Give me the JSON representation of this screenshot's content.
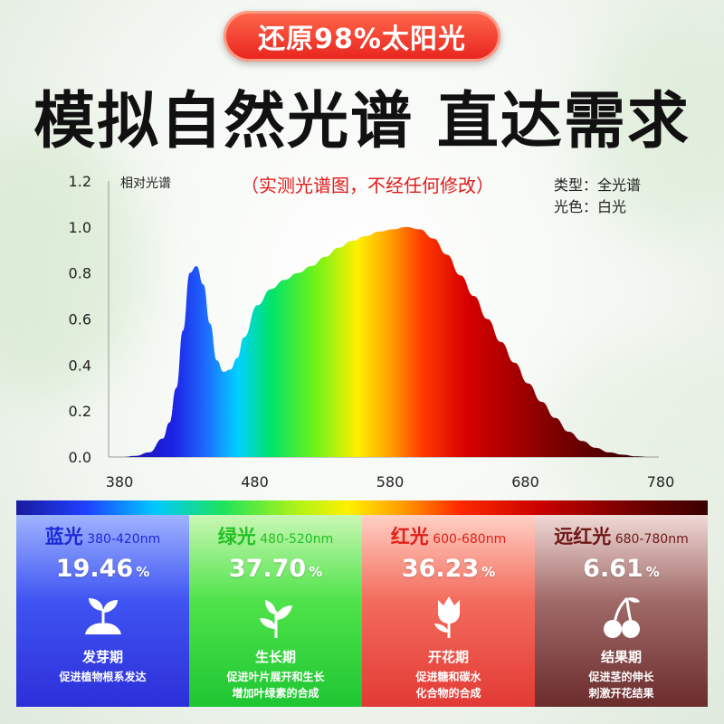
{
  "badge": "还原98%太阳光",
  "headline": "模拟自然光谱 直达需求",
  "chart_data": {
    "type": "area",
    "title": "（实测光谱图，不经任何修改）",
    "ylabel": "相对光谱",
    "xlabel": "",
    "x_ticks": [
      380,
      480,
      580,
      680,
      780
    ],
    "y_ticks": [
      "0.0",
      "0.2",
      "0.4",
      "0.6",
      "0.8",
      "1.0",
      "1.2"
    ],
    "xlim": [
      380,
      780
    ],
    "ylim": [
      0,
      1.2
    ],
    "grid": false,
    "annotation_lines": [
      "类型：全光谱",
      "光色：白光"
    ],
    "series": [
      {
        "x": [
          380,
          390,
          400,
          410,
          420,
          425,
          430,
          435,
          440,
          445,
          450,
          455,
          460,
          465,
          470,
          475,
          480,
          490,
          500,
          510,
          520,
          530,
          540,
          550,
          560,
          570,
          580,
          590,
          600,
          610,
          620,
          630,
          640,
          650,
          660,
          670,
          680,
          690,
          700,
          710,
          720,
          730,
          740,
          750,
          760,
          770,
          780
        ],
        "y": [
          0.0,
          0.0,
          0.005,
          0.02,
          0.08,
          0.15,
          0.3,
          0.55,
          0.8,
          0.83,
          0.75,
          0.58,
          0.42,
          0.37,
          0.38,
          0.43,
          0.52,
          0.66,
          0.73,
          0.77,
          0.8,
          0.83,
          0.87,
          0.91,
          0.94,
          0.96,
          0.98,
          0.99,
          1.0,
          0.99,
          0.95,
          0.88,
          0.79,
          0.7,
          0.6,
          0.5,
          0.41,
          0.32,
          0.24,
          0.17,
          0.11,
          0.07,
          0.04,
          0.02,
          0.01,
          0.003,
          0.0
        ]
      }
    ]
  },
  "panels": [
    {
      "name": "蓝光",
      "range": "380-420nm",
      "percent": "19.46",
      "unit": "%",
      "stage": "发芽期",
      "desc1": "促进植物根系发达",
      "desc2": "",
      "icon": "sprout-icon"
    },
    {
      "name": "绿光",
      "range": "480-520nm",
      "percent": "37.70",
      "unit": "%",
      "stage": "生长期",
      "desc1": "促进叶片展开和生长",
      "desc2": "增加叶绿素的合成",
      "icon": "seedling-icon"
    },
    {
      "name": "红光",
      "range": "600-680nm",
      "percent": "36.23",
      "unit": "%",
      "stage": "开花期",
      "desc1": "促进糖和碳水",
      "desc2": "化合物的合成",
      "icon": "flower-icon"
    },
    {
      "name": "远红光",
      "range": "680-780nm",
      "percent": "6.61",
      "unit": "%",
      "stage": "结果期",
      "desc1": "促进茎的伸长",
      "desc2": "刺激开花结果",
      "icon": "cherry-icon"
    }
  ]
}
